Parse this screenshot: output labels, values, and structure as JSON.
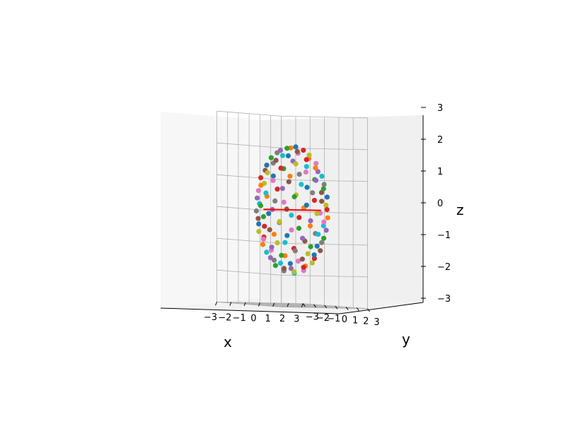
{
  "chart_data": {
    "type": "scatter",
    "projection": "3d",
    "title": "",
    "xlabel": "x",
    "ylabel": "y",
    "zlabel": "z",
    "xlim": [
      -3,
      3
    ],
    "ylim": [
      -3,
      3
    ],
    "zlim": [
      -3,
      3
    ],
    "xticks": [
      "−3",
      "−2",
      "−1",
      "0",
      "1",
      "2",
      "3"
    ],
    "yticks": [
      "−3",
      "−2",
      "−1",
      "0",
      "1",
      "2",
      "3"
    ],
    "zticks": [
      "−3",
      "−2",
      "−1",
      "0",
      "1",
      "2",
      "3"
    ],
    "grid": true,
    "shape": "sphere of points",
    "sphere_radius": 2,
    "point_count": 130,
    "point_colors": [
      "#1f77b4",
      "#ff7f0e",
      "#2ca02c",
      "#d62728",
      "#9467bd",
      "#8c564b",
      "#e377c2",
      "#7f7f7f",
      "#bcbd22",
      "#17becf"
    ],
    "line_color": "#ff0000",
    "line_segment": [
      [
        -2,
        0,
        0
      ],
      [
        2,
        0,
        0
      ]
    ]
  }
}
